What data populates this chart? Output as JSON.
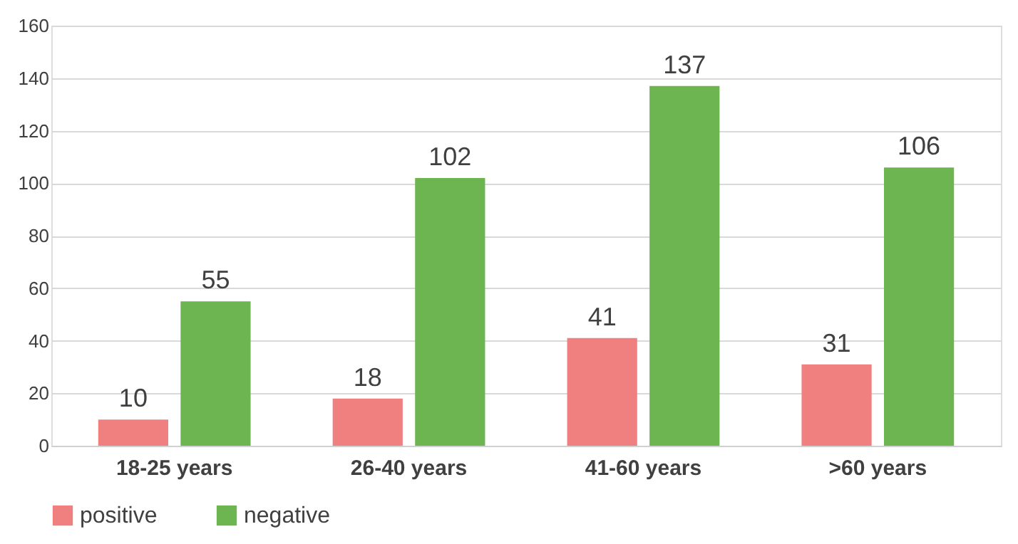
{
  "chart_data": {
    "type": "bar",
    "categories": [
      "18-25 years",
      "26-40 years",
      "41-60 years",
      ">60 years"
    ],
    "series": [
      {
        "name": "positive",
        "color": "#f07f7f",
        "values": [
          10,
          18,
          41,
          31
        ]
      },
      {
        "name": "negative",
        "color": "#6db550",
        "values": [
          55,
          102,
          137,
          106
        ]
      }
    ],
    "ylim": [
      0,
      160
    ],
    "yticks": [
      0,
      20,
      40,
      60,
      80,
      100,
      120,
      140,
      160
    ],
    "grid": "y",
    "legend": "bottom",
    "data_labels": true
  }
}
